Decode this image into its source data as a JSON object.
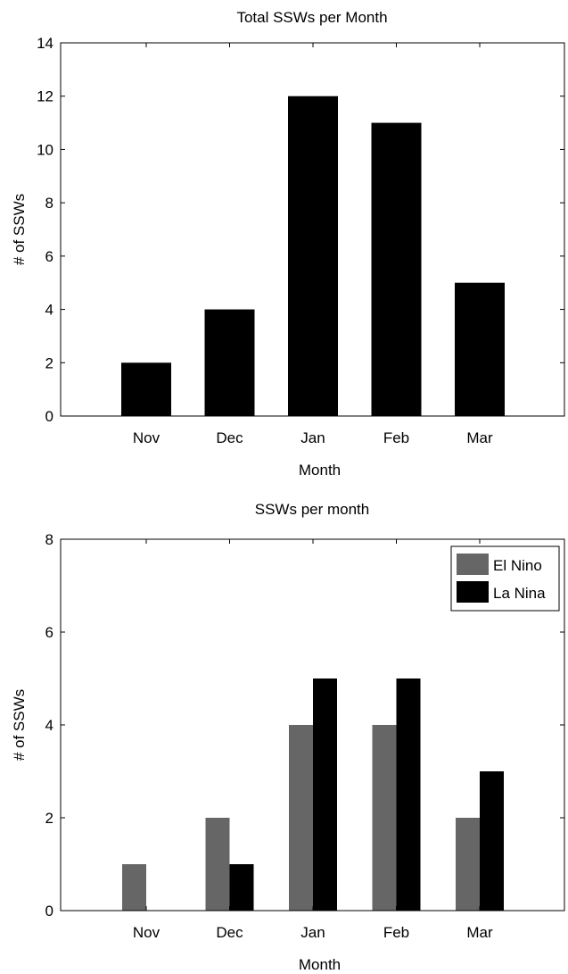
{
  "chart_data": [
    {
      "type": "bar",
      "title": "Total SSWs per Month",
      "xlabel": "Month",
      "ylabel": "# of SSWs",
      "categories": [
        "Nov",
        "Dec",
        "Jan",
        "Feb",
        "Mar"
      ],
      "series": [
        {
          "values": [
            2,
            4,
            12,
            11,
            5
          ],
          "color": "#000000"
        }
      ],
      "ylim": [
        0,
        14
      ],
      "yticks": [
        0,
        2,
        4,
        6,
        8,
        10,
        12,
        14
      ],
      "grid": false,
      "legend": null
    },
    {
      "type": "bar",
      "title": "SSWs per month",
      "xlabel": "Month",
      "ylabel": "# of SSWs",
      "categories": [
        "Nov",
        "Dec",
        "Jan",
        "Feb",
        "Mar"
      ],
      "series": [
        {
          "name": "El Nino",
          "values": [
            1,
            2,
            4,
            4,
            2
          ],
          "color": "#666666"
        },
        {
          "name": "La Nina",
          "values": [
            0,
            1,
            5,
            5,
            3
          ],
          "color": "#000000"
        }
      ],
      "ylim": [
        0,
        8
      ],
      "yticks": [
        0,
        2,
        4,
        6,
        8
      ],
      "grid": false,
      "legend": "top-right"
    }
  ]
}
